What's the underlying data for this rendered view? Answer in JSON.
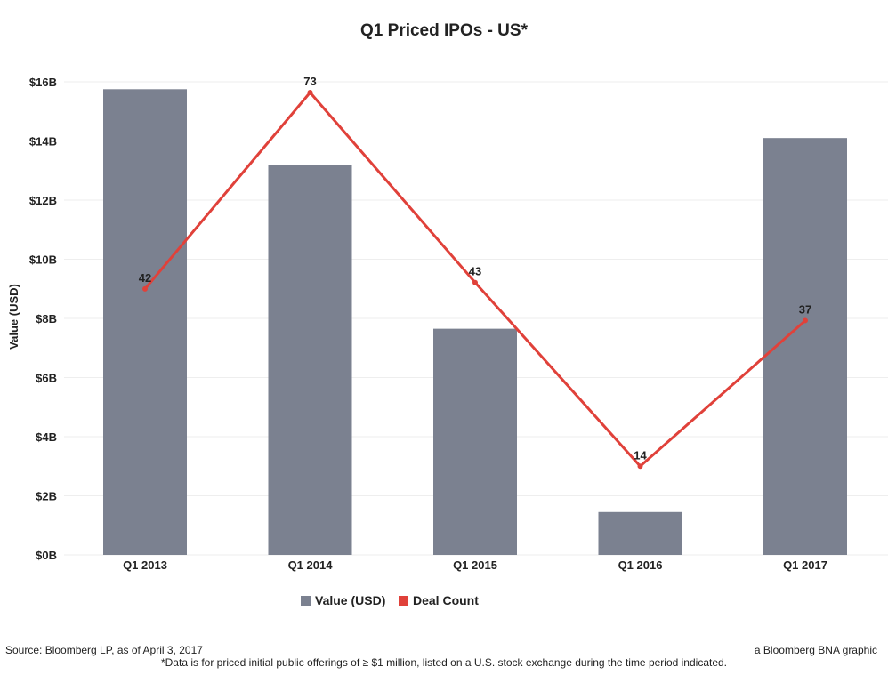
{
  "chart_data": {
    "type": "bar",
    "title": "Q1 Priced IPOs - US*",
    "ylabel": "Value (USD)",
    "xlabel": "",
    "categories": [
      "Q1 2013",
      "Q1 2014",
      "Q1 2015",
      "Q1 2016",
      "Q1 2017"
    ],
    "ylim": [
      0,
      16
    ],
    "y_ticks": [
      {
        "value": 0,
        "label": "$0B"
      },
      {
        "value": 2,
        "label": "$2B"
      },
      {
        "value": 4,
        "label": "$4B"
      },
      {
        "value": 6,
        "label": "$6B"
      },
      {
        "value": 8,
        "label": "$8B"
      },
      {
        "value": 10,
        "label": "$10B"
      },
      {
        "value": 12,
        "label": "$12B"
      },
      {
        "value": 14,
        "label": "$14B"
      },
      {
        "value": 16,
        "label": "$16B"
      }
    ],
    "grid": true,
    "legend_position": "bottom",
    "series": [
      {
        "name": "Value (USD)",
        "type": "bar",
        "color": "#7b8190",
        "values": [
          15.75,
          13.2,
          7.65,
          1.45,
          14.1
        ]
      },
      {
        "name": "Deal Count",
        "type": "line",
        "color": "#e0413a",
        "values": [
          42,
          73,
          43,
          14,
          37
        ],
        "data_labels": [
          "42",
          "73",
          "43",
          "14",
          "37"
        ]
      }
    ]
  },
  "footer": {
    "source": "Source: Bloomberg LP, as of April 3, 2017",
    "credit": "a Bloomberg BNA graphic",
    "note": "*Data is for priced initial public offerings of ≥ $1 million, listed on a U.S. stock exchange during the time period indicated."
  }
}
